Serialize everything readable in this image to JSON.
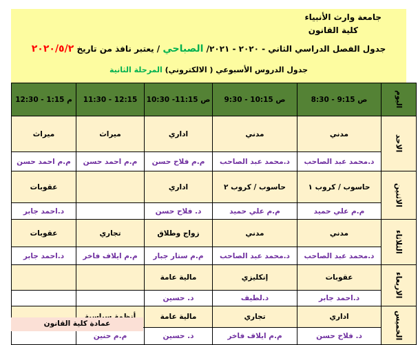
{
  "header": {
    "university": "جامعة وارث الأنبياء",
    "college": "كلية القانون",
    "line3_a": "جدول الفصل الدراسي الثاني - ٢٠٢٠ - ٢٠٢١/ ",
    "line3_shift": "الصباحي",
    "line3_b": " / يعتبر نافذ من تاريخ ",
    "line3_date": "٢٠٢٠/٥/٢",
    "line4_a": "جدول الدروس الأسبوعي ( الالكتروني) ",
    "line4_stage": "المرحلة الثانية"
  },
  "colors": {
    "header_bg": "#fdfca0",
    "table_header": "#548235",
    "cell": "#fef2cb",
    "teacher_text": "#7030a0",
    "date": "#ff0000",
    "shift": "#00b050",
    "footer_bg": "#fbe0d6"
  },
  "table": {
    "day_header": "اليوم",
    "periods": [
      "ص 9:15 - 8:30",
      "ص 10:15 - 9:30",
      "ص 11:15- 10:30",
      "12:15 - 11:30",
      "م 1:15 - 12:30"
    ],
    "days": [
      {
        "day": "الاحد",
        "subjects": [
          "مدني",
          "مدني",
          "اداري",
          "ميراث",
          "ميراث"
        ],
        "teachers": [
          "د.محمد عبد الصاحب",
          "د.محمد عبد الصاحب",
          "م.م فلاح حسن",
          "م.م احمد حسن",
          "م.م احمد حسن"
        ]
      },
      {
        "day": "الاثنين",
        "subjects": [
          "حاسوب / كروب ١",
          "حاسوب / كروب ٢",
          "اداري",
          "",
          "عقوبات"
        ],
        "teachers": [
          "م.م علي حميد",
          "م.م علي حميد",
          "د. فلاح حسن",
          "",
          "د.احمد جابر"
        ]
      },
      {
        "day": "الثلاثاء",
        "subjects": [
          "مدني",
          "مدني",
          "زواج وطلاق",
          "تجاري",
          "عقوبات"
        ],
        "teachers": [
          "د.محمد عبد الصاحب",
          "د.محمد عبد الصاحب",
          "م.م ستار جبار",
          "م.م ايلاف فاخر",
          "د.احمد جابر"
        ]
      },
      {
        "day": "الاربعاء",
        "subjects": [
          "عقوبات",
          "إنكليزي",
          "مالية عامة",
          "",
          ""
        ],
        "teachers": [
          "د.احمد جابر",
          "د.لطيف",
          "د. حسين",
          "",
          ""
        ]
      },
      {
        "day": "الخميس",
        "subjects": [
          "اداري",
          "تجاري",
          "مالية عامة",
          "أنظمة سياسية",
          ""
        ],
        "teachers": [
          "د. فلاح حسن",
          "م.م ايلاف فاخر",
          "د. حسين",
          "م.م حنين",
          ""
        ]
      }
    ]
  },
  "footer": "عمادة كلية القانون"
}
